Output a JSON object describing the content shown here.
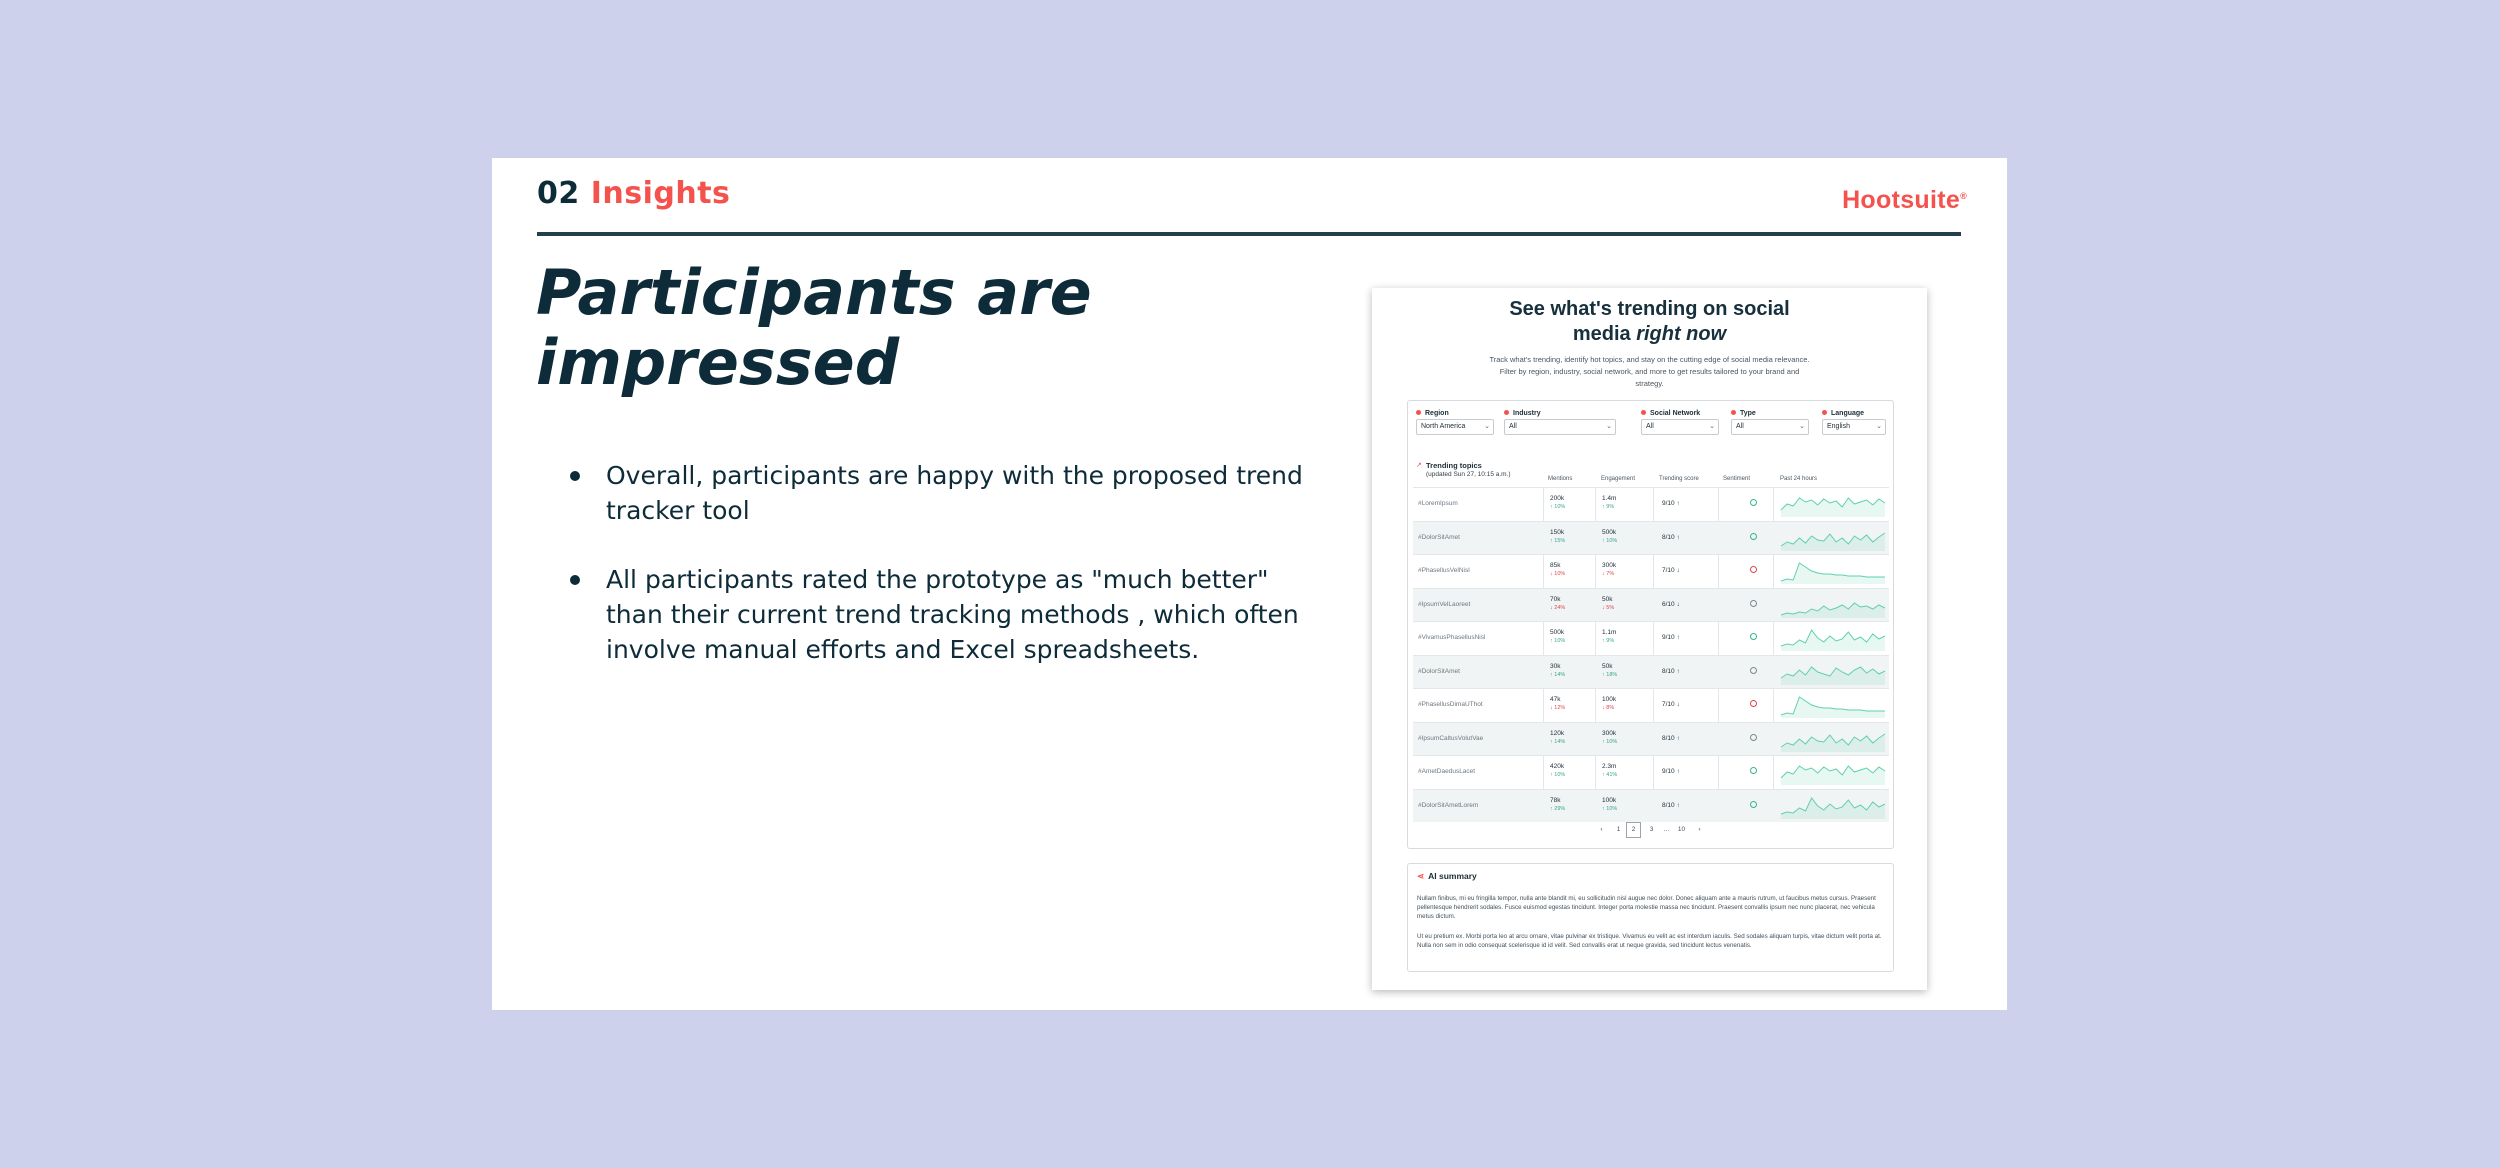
{
  "header": {
    "section_number": "02",
    "section_name": "Insights",
    "logo_text": "Hootsuite",
    "logo_mark": "®"
  },
  "headline": "Participants are impressed",
  "bullets": [
    "Overall, participants are happy with the proposed trend tracker tool",
    "All participants rated the prototype as \"much better\" than their current trend tracking methods , which often involve manual efforts and Excel spreadsheets."
  ],
  "colors": {
    "background": "#cdd1ec",
    "brand_red": "#f4524d",
    "navy": "#0d2b38",
    "sparkline": "#5fd0ad"
  },
  "mockup": {
    "title_line1": "See what's trending on social",
    "title_line2_plain": "media ",
    "title_line2_emph": "right now",
    "subtitle": "Track what's trending, identify hot topics, and stay on the cutting edge of social media relevance. Filter by region, industry, social network, and more to get results tailored to your brand and strategy.",
    "filters": [
      {
        "label": "Region",
        "value": "North America",
        "icon": "location-pin-icon"
      },
      {
        "label": "Industry",
        "value": "All",
        "icon": "industry-icon"
      },
      {
        "label": "Social Network",
        "value": "All",
        "icon": "network-icon"
      },
      {
        "label": "Type",
        "value": "All",
        "icon": "type-icon"
      },
      {
        "label": "Language",
        "value": "English",
        "icon": "language-icon"
      }
    ],
    "table_title": "Trending topics",
    "table_updated": "(updated Sun 27, 10:15 a.m.)",
    "columns": [
      "Mentions",
      "Engagement",
      "Trending score",
      "Sentiment",
      "Past 24 hours"
    ],
    "rows": [
      {
        "topic": "#LoremIpsum",
        "mentions": "200k",
        "m_change": "↑ 10%",
        "m_dir": "up",
        "engagement": "1.4m",
        "e_change": "↑ 9%",
        "e_dir": "up",
        "score": "9/10 ↑",
        "sentiment": "positive",
        "spark": "a"
      },
      {
        "topic": "#DolorSitAmet",
        "mentions": "150k",
        "m_change": "↑ 15%",
        "m_dir": "up",
        "engagement": "500k",
        "e_change": "↑ 10%",
        "e_dir": "up",
        "score": "8/10 ↑",
        "sentiment": "positive",
        "spark": "b"
      },
      {
        "topic": "#PhasellusVelNisl",
        "mentions": "85k",
        "m_change": "↓ 10%",
        "m_dir": "dn",
        "engagement": "300k",
        "e_change": "↓ 7%",
        "e_dir": "dn",
        "score": "7/10 ↓",
        "sentiment": "negative",
        "spark": "c"
      },
      {
        "topic": "#IpsumVelLaoreet",
        "mentions": "70k",
        "m_change": "↓ 24%",
        "m_dir": "dn",
        "engagement": "50k",
        "e_change": "↓ 5%",
        "e_dir": "dn",
        "score": "6/10 ↓",
        "sentiment": "neutral",
        "spark": "d"
      },
      {
        "topic": "#VivamusPhasellusNisl",
        "mentions": "500k",
        "m_change": "↑ 10%",
        "m_dir": "up",
        "engagement": "1.1m",
        "e_change": "↑ 9%",
        "e_dir": "up",
        "score": "9/10 ↑",
        "sentiment": "positive",
        "spark": "e"
      },
      {
        "topic": "#DolorSitAmet",
        "mentions": "30k",
        "m_change": "↑ 14%",
        "m_dir": "up",
        "engagement": "50k",
        "e_change": "↑ 18%",
        "e_dir": "up",
        "score": "8/10 ↑",
        "sentiment": "neutral",
        "spark": "f"
      },
      {
        "topic": "#PhasellusDimaUThot",
        "mentions": "47k",
        "m_change": "↓ 12%",
        "m_dir": "dn",
        "engagement": "100k",
        "e_change": "↓ 8%",
        "e_dir": "dn",
        "score": "7/10 ↓",
        "sentiment": "negative",
        "spark": "c"
      },
      {
        "topic": "#IpsumCaltusVolutVae",
        "mentions": "120k",
        "m_change": "↑ 14%",
        "m_dir": "up",
        "engagement": "300k",
        "e_change": "↑ 10%",
        "e_dir": "up",
        "score": "8/10 ↑",
        "sentiment": "neutral",
        "spark": "b"
      },
      {
        "topic": "#AmetDaedusLacet",
        "mentions": "420k",
        "m_change": "↑ 10%",
        "m_dir": "up",
        "engagement": "2.3m",
        "e_change": "↑ 41%",
        "e_dir": "up",
        "score": "9/10 ↑",
        "sentiment": "positive",
        "spark": "a"
      },
      {
        "topic": "#DolorSitAmetLorem",
        "mentions": "78k",
        "m_change": "↑ 29%",
        "m_dir": "up",
        "engagement": "100k",
        "e_change": "↑ 10%",
        "e_dir": "up",
        "score": "8/10 ↑",
        "sentiment": "positive",
        "spark": "e"
      }
    ],
    "pagination": [
      "‹",
      "1",
      "2",
      "3",
      "...",
      "10",
      "›"
    ],
    "pagination_active": "2",
    "ai_title": "AI summary",
    "ai_p1": "Nullam finibus, mi eu fringilla tempor, nulla ante blandit mi, eu sollicitudin nisl augue nec dolor. Donec aliquam ante a mauris rutrum, ut faucibus metus cursus. Praesent pellentesque hendrerit sodales. Fusce euismod egestas tincidunt. Integer porta molestie massa nec tincidunt. Praesent convallis ipsum nec nunc placerat, nec vehicula metus dictum.",
    "ai_p2": "Ut eu pretium ex. Morbi porta leo at arcu ornare, vitae pulvinar ex tristique. Vivamus eu velit ac est interdum iaculis. Sed sodales aliquam turpis, vitae dictum velit porta at. Nulla non sem in odio consequat scelerisque id id velit. Sed convallis erat ut neque gravida, sed tincidunt lectus venenatis."
  }
}
